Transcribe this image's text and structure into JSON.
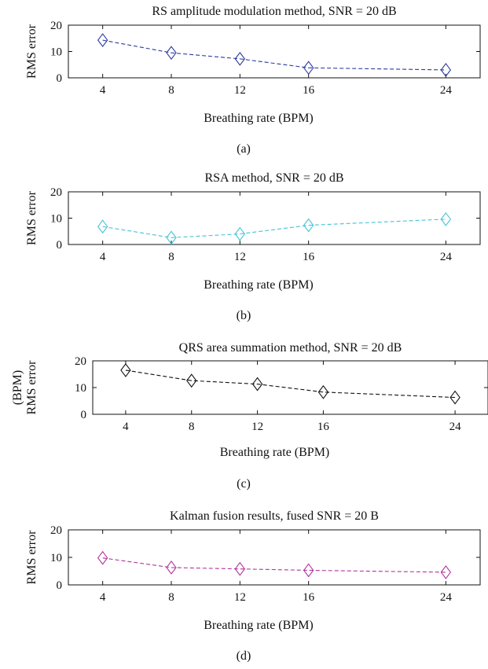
{
  "chart_data": [
    {
      "type": "line",
      "title": "RS amplitude modulation method, SNR = 20 dB",
      "ylabel_lines": [
        "RMS error"
      ],
      "xlabel": "Breathing rate (BPM)",
      "caption": "(a)",
      "x": [
        4,
        8,
        12,
        16,
        24
      ],
      "y": [
        14.3,
        9.5,
        7.2,
        3.8,
        3.0
      ],
      "xticks": [
        "4",
        "8",
        "12",
        "16",
        "24"
      ],
      "yticks": [
        "0",
        "10",
        "20"
      ],
      "xlim": [
        2,
        26
      ],
      "ylim": [
        0,
        20
      ],
      "color": "#2b3a9e",
      "marker": "diamond",
      "line_style": "dashed",
      "grid": false
    },
    {
      "type": "line",
      "title": "RSA method, SNR = 20 dB",
      "ylabel_lines": [
        "RMS error"
      ],
      "xlabel": "Breathing rate (BPM)",
      "caption": "(b)",
      "x": [
        4,
        8,
        12,
        16,
        24
      ],
      "y": [
        6.8,
        2.6,
        4.0,
        7.3,
        9.6
      ],
      "xticks": [
        "4",
        "8",
        "12",
        "16",
        "24"
      ],
      "yticks": [
        "0",
        "10",
        "20"
      ],
      "xlim": [
        2,
        26
      ],
      "ylim": [
        0,
        20
      ],
      "color": "#45c3d6",
      "marker": "diamond",
      "line_style": "dashed",
      "grid": false
    },
    {
      "type": "line",
      "title": "QRS area summation method, SNR = 20 dB",
      "ylabel_lines": [
        "RMS error",
        "(BPM)"
      ],
      "xlabel": "Breathing rate (BPM)",
      "caption": "(c)",
      "x": [
        4,
        8,
        12,
        16,
        24
      ],
      "y": [
        16.5,
        12.6,
        11.3,
        8.3,
        6.3
      ],
      "xticks": [
        "4",
        "8",
        "12",
        "16",
        "24"
      ],
      "yticks": [
        "0",
        "10",
        "20"
      ],
      "xlim": [
        2,
        26
      ],
      "ylim": [
        0,
        20
      ],
      "color": "#111111",
      "marker": "diamond",
      "line_style": "dashed",
      "grid": false
    },
    {
      "type": "line",
      "title": "Kalman fusion results, fused SNR = 20 B",
      "ylabel_lines": [
        "RMS error"
      ],
      "xlabel": "Breathing rate (BPM)",
      "caption": "(d)",
      "x": [
        4,
        8,
        12,
        16,
        24
      ],
      "y": [
        9.8,
        6.3,
        5.8,
        5.3,
        4.6
      ],
      "xticks": [
        "4",
        "8",
        "12",
        "16",
        "24"
      ],
      "yticks": [
        "0",
        "10",
        "20"
      ],
      "xlim": [
        2,
        26
      ],
      "ylim": [
        0,
        20
      ],
      "color": "#b0349a",
      "marker": "diamond",
      "line_style": "dashed",
      "grid": false
    }
  ]
}
